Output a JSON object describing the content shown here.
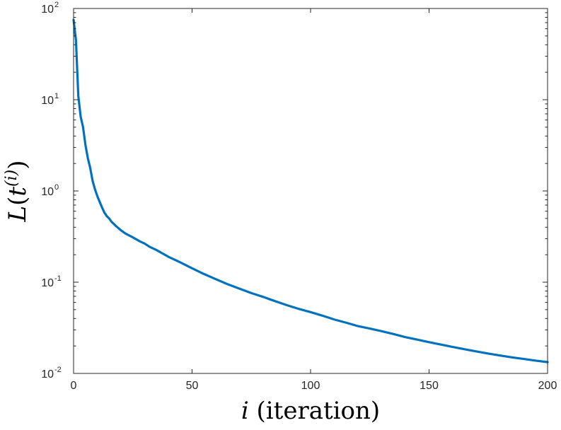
{
  "chart_data": {
    "type": "line",
    "title": "",
    "xlabel": "",
    "ylabel": "",
    "xlabel_parts": {
      "var": "i",
      "text": " (iteration)"
    },
    "ylabel_parts": {
      "fn": "L",
      "open": "(",
      "arg": "t",
      "sup": "(i)",
      "close": ")"
    },
    "xlim": [
      0,
      200
    ],
    "ylim": [
      0.01,
      100
    ],
    "yscale": "log",
    "grid": false,
    "legend": "none",
    "xticks": [
      {
        "value": 0,
        "label": "0"
      },
      {
        "value": 50,
        "label": "50"
      },
      {
        "value": 100,
        "label": "100"
      },
      {
        "value": 150,
        "label": "150"
      },
      {
        "value": 200,
        "label": "200"
      }
    ],
    "yticks": [
      {
        "value": 0.01,
        "base": "10",
        "exp": "-2"
      },
      {
        "value": 0.1,
        "base": "10",
        "exp": "-1"
      },
      {
        "value": 1,
        "base": "10",
        "exp": "0"
      },
      {
        "value": 10,
        "base": "10",
        "exp": "1"
      },
      {
        "value": 100,
        "base": "10",
        "exp": "2"
      }
    ],
    "series": [
      {
        "color": "#0072BD",
        "x": [
          0,
          1,
          2,
          3,
          4,
          5,
          6,
          7,
          8,
          9,
          10,
          11,
          12,
          13,
          14,
          15,
          16,
          18,
          20,
          22,
          25,
          28,
          30,
          32,
          35,
          40,
          45,
          50,
          55,
          60,
          65,
          70,
          75,
          80,
          85,
          90,
          95,
          100,
          105,
          110,
          115,
          120,
          125,
          130,
          135,
          140,
          145,
          150,
          155,
          160,
          165,
          170,
          175,
          180,
          185,
          190,
          195,
          200
        ],
        "y": [
          75,
          45,
          11,
          6.5,
          5,
          3.2,
          2.3,
          1.8,
          1.3,
          1.05,
          0.88,
          0.76,
          0.66,
          0.58,
          0.53,
          0.5,
          0.46,
          0.41,
          0.37,
          0.34,
          0.31,
          0.28,
          0.265,
          0.245,
          0.225,
          0.19,
          0.165,
          0.142,
          0.123,
          0.108,
          0.095,
          0.085,
          0.076,
          0.069,
          0.062,
          0.056,
          0.051,
          0.047,
          0.043,
          0.039,
          0.036,
          0.033,
          0.031,
          0.029,
          0.027,
          0.025,
          0.0235,
          0.022,
          0.0207,
          0.0195,
          0.0184,
          0.0174,
          0.0165,
          0.0157,
          0.015,
          0.0144,
          0.0138,
          0.0133
        ]
      }
    ]
  }
}
